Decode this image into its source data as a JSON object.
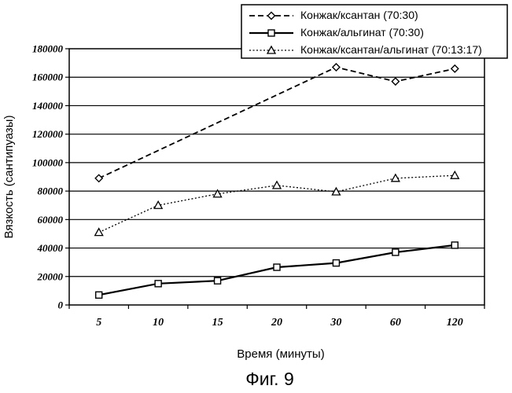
{
  "chart_data": {
    "type": "line",
    "caption": "Фиг. 9",
    "xlabel": "Время (минуты)",
    "ylabel": "Вязкость (сантипуазы)",
    "categories": [
      "5",
      "10",
      "15",
      "20",
      "30",
      "60",
      "120"
    ],
    "ylim": [
      0,
      180000
    ],
    "yticks": [
      0,
      20000,
      40000,
      60000,
      80000,
      100000,
      120000,
      140000,
      160000,
      180000
    ],
    "grid": "horizontal",
    "legend_position": "top-right",
    "series": [
      {
        "name": "Конжак/ксантан (70:30)",
        "marker": "diamond",
        "line": "dashed",
        "values": [
          89000,
          null,
          null,
          null,
          167000,
          157000,
          166000
        ]
      },
      {
        "name": "Конжак/альгинат (70:30)",
        "marker": "square",
        "line": "solid",
        "values": [
          7000,
          15000,
          17000,
          26500,
          29500,
          37000,
          42000
        ]
      },
      {
        "name": "Конжак/ксантан/альгинат (70:13:17)",
        "marker": "triangle",
        "line": "dotted",
        "values": [
          51000,
          70000,
          78000,
          84000,
          79500,
          89000,
          91000
        ]
      }
    ]
  }
}
